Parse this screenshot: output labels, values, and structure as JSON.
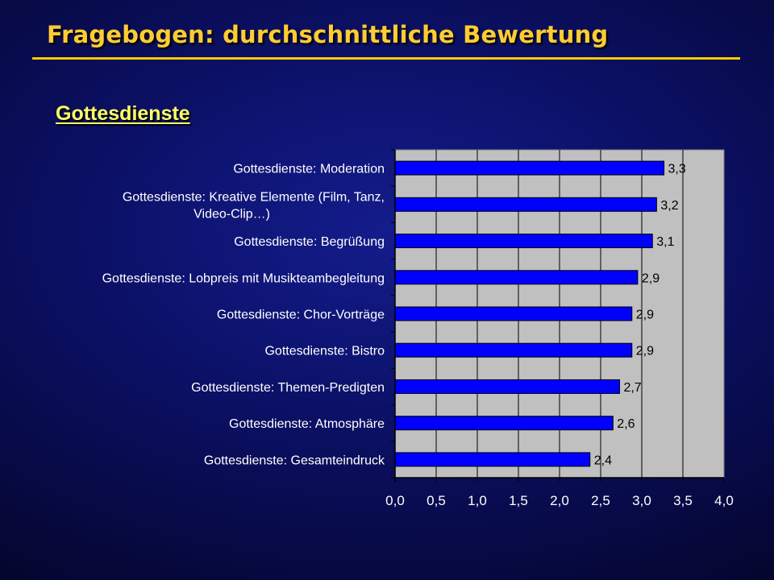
{
  "slide_title": "Fragebogen: durchschnittliche Bewertung",
  "section_heading": "Gottesdienste",
  "colors": {
    "background": "#0b1064",
    "title": "#ffcc33",
    "title_rule": "#ffcc00",
    "heading": "#ffff66",
    "plot_area": "#c0c0c0",
    "bar": "#0000ff",
    "text": "#ffffff"
  },
  "chart_data": {
    "type": "bar",
    "orientation": "horizontal",
    "categories": [
      [
        "Gottesdienste: Moderation"
      ],
      [
        "Gottesdienste: Kreative Elemente (Film, Tanz,",
        "Video-Clip…)"
      ],
      [
        "Gottesdienste: Begrüßung"
      ],
      [
        "Gottesdienste: Lobpreis mit Musikteambegleitung"
      ],
      [
        "Gottesdienste: Chor-Vorträge"
      ],
      [
        "Gottesdienste: Bistro"
      ],
      [
        "Gottesdienste: Themen-Predigten"
      ],
      [
        "Gottesdienste: Atmosphäre"
      ],
      [
        "Gottesdienste: Gesamteindruck"
      ]
    ],
    "values": [
      3.27,
      3.18,
      3.13,
      2.95,
      2.88,
      2.88,
      2.73,
      2.65,
      2.37
    ],
    "data_labels": [
      "3,3",
      "3,2",
      "3,1",
      "2,9",
      "2,9",
      "2,9",
      "2,7",
      "2,6",
      "2,4"
    ],
    "x_ticks": [
      0,
      0.5,
      1.0,
      1.5,
      2.0,
      2.5,
      3.0,
      3.5,
      4.0
    ],
    "x_tick_labels": [
      "0,0",
      "0,5",
      "1,0",
      "1,5",
      "2,0",
      "2,5",
      "3,0",
      "3,5",
      "4,0"
    ],
    "xlim": [
      0,
      4
    ],
    "grid": "vertical major gridlines",
    "legend": "none",
    "title": "",
    "xlabel": "",
    "ylabel": ""
  }
}
